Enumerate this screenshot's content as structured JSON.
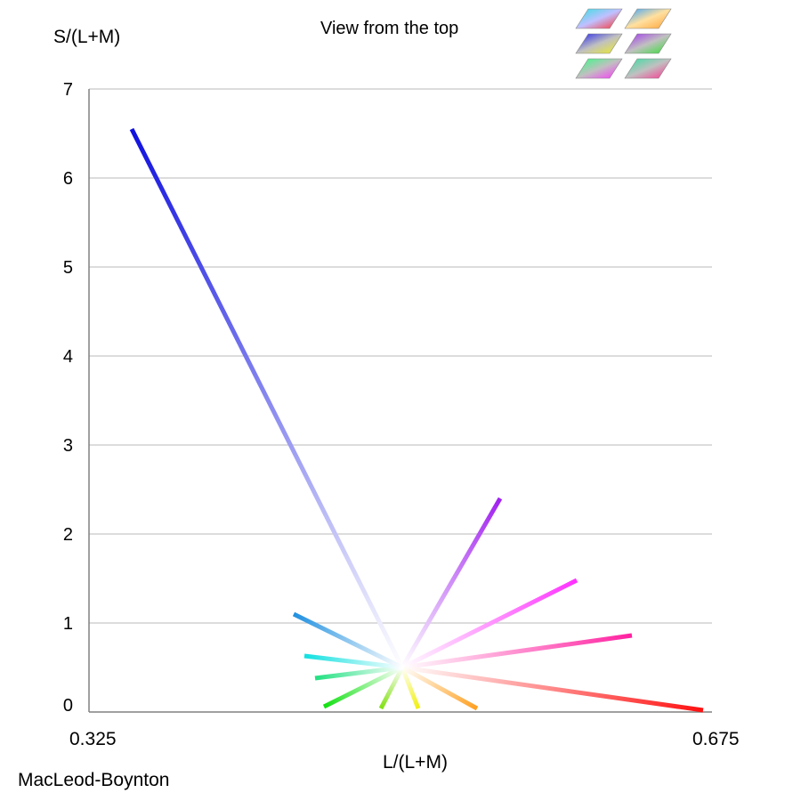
{
  "header": {
    "title": "View from the top",
    "corner_label": "MacLeod-Boynton"
  },
  "chart_data": {
    "type": "line",
    "title": "View from the top",
    "xlabel": "L/(L+M)",
    "ylabel": "S/(L+M)",
    "xlim": [
      0.325,
      0.675
    ],
    "ylim": [
      0,
      7
    ],
    "x_tick_labels": [
      "0.325",
      "0.675"
    ],
    "y_ticks": [
      0,
      1,
      2,
      3,
      4,
      5,
      6,
      7
    ],
    "y_tick_labels": [
      "0",
      "1",
      "2",
      "3",
      "4",
      "5",
      "6",
      "7"
    ],
    "grid": true,
    "white_point": {
      "x": 0.501,
      "y": 0.5
    },
    "series": [
      {
        "name": "blue",
        "color": "#1010e0",
        "end": {
          "x": 0.349,
          "y": 6.55
        }
      },
      {
        "name": "violet",
        "color": "#a020f0",
        "end": {
          "x": 0.556,
          "y": 2.4
        }
      },
      {
        "name": "magenta",
        "color": "#ff30ff",
        "end": {
          "x": 0.599,
          "y": 1.48
        }
      },
      {
        "name": "pink",
        "color": "#ff20a0",
        "end": {
          "x": 0.63,
          "y": 0.86
        }
      },
      {
        "name": "red",
        "color": "#ff1010",
        "end": {
          "x": 0.67,
          "y": 0.02
        }
      },
      {
        "name": "orange",
        "color": "#ffa020",
        "end": {
          "x": 0.543,
          "y": 0.04
        }
      },
      {
        "name": "yellow",
        "color": "#f0f010",
        "end": {
          "x": 0.51,
          "y": 0.04
        }
      },
      {
        "name": "yellow-green",
        "color": "#80e010",
        "end": {
          "x": 0.489,
          "y": 0.04
        }
      },
      {
        "name": "green",
        "color": "#10e010",
        "end": {
          "x": 0.457,
          "y": 0.06
        }
      },
      {
        "name": "spring-green",
        "color": "#20e080",
        "end": {
          "x": 0.452,
          "y": 0.38
        }
      },
      {
        "name": "cyan",
        "color": "#10e0e0",
        "end": {
          "x": 0.446,
          "y": 0.63
        }
      },
      {
        "name": "azure",
        "color": "#2090e0",
        "end": {
          "x": 0.44,
          "y": 1.1
        }
      }
    ]
  },
  "thumbnails": [
    {
      "name": "thumb-red-cyan",
      "colors": [
        "#ff3030",
        "#30e0e0",
        "#c0c0ff"
      ]
    },
    {
      "name": "thumb-orange-blue",
      "colors": [
        "#ffa030",
        "#30a0ff",
        "#ffe0a0"
      ]
    },
    {
      "name": "thumb-yellow-blue",
      "colors": [
        "#f0f020",
        "#2020f0",
        "#c0c0c0"
      ]
    },
    {
      "name": "thumb-green-violet",
      "colors": [
        "#30e030",
        "#a030f0",
        "#c0c0c0"
      ]
    },
    {
      "name": "thumb-magenta-green",
      "colors": [
        "#ff30ff",
        "#30ff80",
        "#c0c0c0"
      ]
    },
    {
      "name": "thumb-pink-teal",
      "colors": [
        "#ff3090",
        "#30e0a0",
        "#c0c0c0"
      ]
    }
  ]
}
